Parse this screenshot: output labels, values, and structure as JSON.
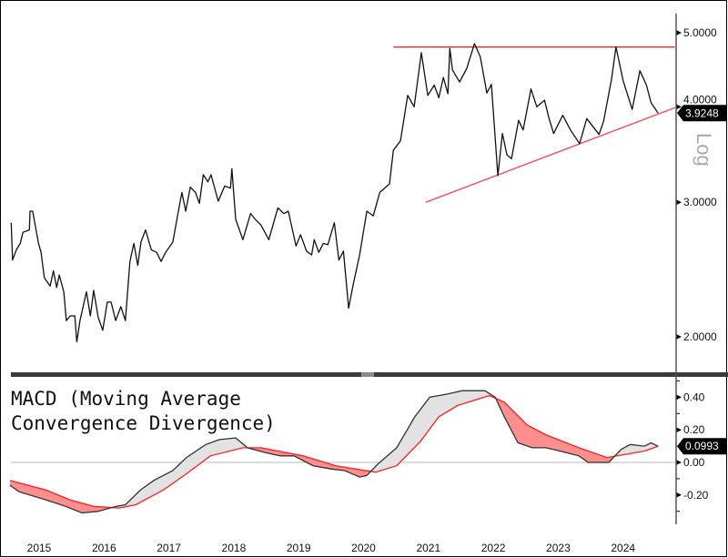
{
  "chart_data": [
    {
      "type": "line",
      "y_scale": "log",
      "y_scale_label": "Log",
      "ylim": [
        1.9,
        5.2
      ],
      "xlim": [
        2015.05,
        2025.35
      ],
      "y_ticks": [
        "2.0000",
        "3.0000",
        "4.0000",
        "5.0000"
      ],
      "last_value_label": "3.9248",
      "grid": false,
      "colors": {
        "line": "#111111",
        "trendlines": "#ff2a2a",
        "badge": "#000000"
      },
      "series": [
        {
          "x": [
            2015.07,
            2015.09,
            2015.15,
            2015.21,
            2015.25,
            2015.35,
            2015.36,
            2015.4,
            2015.49,
            2015.53,
            2015.58,
            2015.67,
            2015.72,
            2015.77,
            2015.81,
            2015.88,
            2015.92,
            2015.98,
            2016.05,
            2016.08,
            2016.13,
            2016.23,
            2016.29,
            2016.34,
            2016.41,
            2016.48,
            2016.55,
            2016.61,
            2016.68,
            2016.76,
            2016.83,
            2016.9,
            2016.96,
            2017.02,
            2017.07,
            2017.14,
            2017.23,
            2017.31,
            2017.38,
            2017.45,
            2017.56,
            2017.63,
            2017.7,
            2017.76,
            2017.83,
            2017.91,
            2017.97,
            2018.03,
            2018.1,
            2018.15,
            2018.26,
            2018.36,
            2018.45,
            2018.47,
            2018.53,
            2018.64,
            2018.76,
            2018.83,
            2018.92,
            2019.04,
            2019.18,
            2019.27,
            2019.34,
            2019.46,
            2019.53,
            2019.62,
            2019.7,
            2019.74,
            2019.81,
            2019.88,
            2019.95,
            2020.05,
            2020.12,
            2020.19,
            2020.27,
            2020.34,
            2020.44,
            2020.55,
            2020.65,
            2020.75,
            2020.9,
            2020.96,
            2021.07,
            2021.18,
            2021.28,
            2021.35,
            2021.39,
            2021.49,
            2021.59,
            2021.66,
            2021.73,
            2021.8,
            2021.83,
            2021.87,
            2021.98,
            2022.09,
            2022.21,
            2022.3,
            2022.4,
            2022.47,
            2022.57,
            2022.64,
            2022.71,
            2022.78,
            2022.89,
            2022.96,
            2023.08,
            2023.17,
            2023.29,
            2023.36,
            2023.43,
            2023.57,
            2023.69,
            2023.83,
            2023.94,
            2024.13,
            2024.2,
            2024.32,
            2024.39,
            2024.5,
            2024.64,
            2024.76,
            2024.86,
            2024.93,
            2025.04
          ],
          "y": [
            2.82,
            2.52,
            2.6,
            2.65,
            2.74,
            2.76,
            2.92,
            2.92,
            2.65,
            2.58,
            2.39,
            2.33,
            2.44,
            2.32,
            2.41,
            2.29,
            2.1,
            2.13,
            2.13,
            1.97,
            2.1,
            2.29,
            2.13,
            2.3,
            2.12,
            2.04,
            2.22,
            2.22,
            2.1,
            2.19,
            2.1,
            2.51,
            2.65,
            2.48,
            2.66,
            2.76,
            2.6,
            2.58,
            2.51,
            2.58,
            2.66,
            2.87,
            3.09,
            2.92,
            3.14,
            3.09,
            2.99,
            3.26,
            3.19,
            3.26,
            3.01,
            3.15,
            3.13,
            3.32,
            2.85,
            2.68,
            2.9,
            2.85,
            2.8,
            2.68,
            2.95,
            2.9,
            2.92,
            2.63,
            2.72,
            2.59,
            2.56,
            2.68,
            2.58,
            2.65,
            2.64,
            2.82,
            2.52,
            2.59,
            2.18,
            2.34,
            2.56,
            2.92,
            2.88,
            3.09,
            3.17,
            3.51,
            3.61,
            4.14,
            4.0,
            4.43,
            4.71,
            4.14,
            4.27,
            4.11,
            4.37,
            4.16,
            4.77,
            4.47,
            4.31,
            4.49,
            4.84,
            4.65,
            4.17,
            4.28,
            3.25,
            3.69,
            3.46,
            3.42,
            3.84,
            3.73,
            4.22,
            4.0,
            4.08,
            3.86,
            3.69,
            3.9,
            3.73,
            3.58,
            3.86,
            3.68,
            3.83,
            4.34,
            4.79,
            4.33,
            3.97,
            4.46,
            4.27,
            4.05,
            3.9248
          ]
        }
      ],
      "trendlines": [
        {
          "kind": "resistance",
          "x": [
            2020.96,
            2025.3
          ],
          "y": [
            4.79,
            4.79
          ]
        },
        {
          "kind": "support",
          "x": [
            2021.46,
            2025.3
          ],
          "y": [
            3.0,
            3.99
          ]
        }
      ]
    },
    {
      "type": "area",
      "title": "MACD (Moving Average Convergence Divergence)",
      "title_lines": [
        "MACD (Moving Average",
        "Convergence Divergence)"
      ],
      "ylim": [
        -0.37,
        0.52
      ],
      "y_ticks": [
        "0.40",
        "0.20",
        "0.00",
        "-0.20"
      ],
      "y_tick_values": [
        0.4,
        0.2,
        0.0,
        -0.2
      ],
      "last_value_label": "0.0993",
      "categories": [
        "2015",
        "2016",
        "2017",
        "2018",
        "2019",
        "2020",
        "2021",
        "2022",
        "2023",
        "2024"
      ],
      "grid": false,
      "colors": {
        "macd": "#333333",
        "signal": "#ff1f1f",
        "fill_above": "#e2e2e2",
        "fill_below": "#ff8e8e",
        "zero_line": "#c8c8c8"
      },
      "series": [
        {
          "x": [
            2015.05,
            2015.19,
            2015.61,
            2015.91,
            2016.16,
            2016.41,
            2016.69,
            2016.83,
            2017.06,
            2017.27,
            2017.56,
            2017.77,
            2018.07,
            2018.28,
            2018.53,
            2018.71,
            2018.99,
            2019.22,
            2019.43,
            2019.72,
            2020.0,
            2020.21,
            2020.44,
            2020.55,
            2020.72,
            2021.01,
            2021.29,
            2021.52,
            2021.8,
            2022.02,
            2022.23,
            2022.37,
            2022.53,
            2022.67,
            2022.88,
            2023.1,
            2023.31,
            2023.53,
            2023.82,
            2023.96,
            2024.28,
            2024.47,
            2024.61,
            2024.83,
            2024.93,
            2025.04
          ],
          "y": [
            -0.14,
            -0.18,
            -0.23,
            -0.27,
            -0.31,
            -0.3,
            -0.27,
            -0.26,
            -0.17,
            -0.11,
            -0.05,
            0.03,
            0.11,
            0.14,
            0.15,
            0.09,
            0.06,
            0.04,
            0.04,
            -0.02,
            -0.04,
            -0.05,
            -0.09,
            -0.08,
            -0.01,
            0.09,
            0.28,
            0.4,
            0.42,
            0.44,
            0.44,
            0.44,
            0.4,
            0.28,
            0.12,
            0.09,
            0.09,
            0.07,
            0.04,
            0.0,
            0.0,
            0.08,
            0.11,
            0.1,
            0.12,
            0.0993
          ]
        },
        {
          "x": [
            2015.05,
            2015.61,
            2015.98,
            2016.34,
            2016.73,
            2016.99,
            2017.41,
            2017.77,
            2018.14,
            2018.64,
            2018.92,
            2019.57,
            2020.07,
            2020.37,
            2020.69,
            2021.01,
            2021.38,
            2021.66,
            2021.95,
            2022.44,
            2022.67,
            2023.02,
            2023.31,
            2023.82,
            2024.25,
            2024.54,
            2024.83,
            2025.04
          ],
          "y": [
            -0.11,
            -0.17,
            -0.23,
            -0.27,
            -0.28,
            -0.26,
            -0.17,
            -0.07,
            0.04,
            0.09,
            0.09,
            0.04,
            -0.02,
            -0.04,
            -0.06,
            -0.02,
            0.13,
            0.28,
            0.35,
            0.41,
            0.37,
            0.23,
            0.17,
            0.09,
            0.03,
            0.05,
            0.07,
            0.0993
          ]
        }
      ]
    }
  ]
}
